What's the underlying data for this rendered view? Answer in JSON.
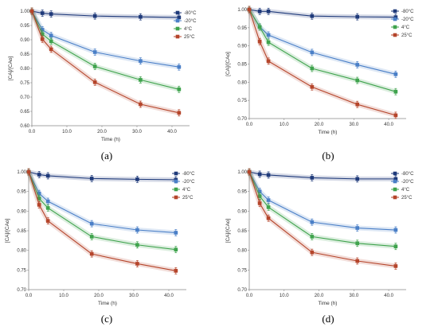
{
  "chart_data": [
    {
      "type": "line",
      "caption": "(a)",
      "xlabel": "Time (h)",
      "ylabel": "[CA]/[CAo]",
      "xlim": [
        0,
        45
      ],
      "ylim": [
        0.6,
        1.0
      ],
      "xticks": [
        "0.0",
        "10.0",
        "20.0",
        "30.0",
        "40.0"
      ],
      "yticks": [
        "0.60",
        "0.65",
        "0.70",
        "0.75",
        "0.80",
        "0.85",
        "0.90",
        "0.95",
        "1.00"
      ],
      "legend_position": "top-right",
      "grid": false,
      "x": [
        0,
        3,
        5.5,
        18,
        31,
        42
      ],
      "series": [
        {
          "name": "-80°C",
          "color": "#1f3a7a",
          "values": [
            1.0,
            0.993,
            0.99,
            0.983,
            0.98,
            0.978
          ]
        },
        {
          "name": "-20°C",
          "color": "#4a7fc7",
          "values": [
            1.0,
            0.935,
            0.915,
            0.857,
            0.826,
            0.805
          ]
        },
        {
          "name": "4°C",
          "color": "#3fa34d",
          "values": [
            1.0,
            0.92,
            0.895,
            0.807,
            0.76,
            0.727
          ]
        },
        {
          "name": "25°C",
          "color": "#b5452b",
          "values": [
            1.0,
            0.902,
            0.867,
            0.752,
            0.675,
            0.645
          ]
        }
      ]
    },
    {
      "type": "line",
      "caption": "(b)",
      "xlabel": "Time (h)",
      "ylabel": "[CA]/[CAo]",
      "xlim": [
        0,
        45
      ],
      "ylim": [
        0.7,
        1.0
      ],
      "xticks": [
        "0.0",
        "10.0",
        "20.0",
        "30.0",
        "40.0"
      ],
      "yticks": [
        "0.70",
        "0.75",
        "0.80",
        "0.85",
        "0.90",
        "0.95",
        "1.00"
      ],
      "legend_position": "top-right",
      "grid": false,
      "x": [
        0,
        3,
        5.5,
        18,
        31,
        42
      ],
      "series": [
        {
          "name": "-80°C",
          "color": "#1f3a7a",
          "values": [
            1.0,
            0.995,
            0.995,
            0.982,
            0.98,
            0.979
          ]
        },
        {
          "name": "-20°C",
          "color": "#4a7fc7",
          "values": [
            1.0,
            0.952,
            0.93,
            0.882,
            0.848,
            0.822
          ]
        },
        {
          "name": "4°C",
          "color": "#3fa34d",
          "values": [
            1.0,
            0.952,
            0.91,
            0.838,
            0.805,
            0.774
          ]
        },
        {
          "name": "25°C",
          "color": "#b5452b",
          "values": [
            1.0,
            0.912,
            0.858,
            0.787,
            0.739,
            0.709
          ]
        }
      ]
    },
    {
      "type": "line",
      "caption": "(c)",
      "xlabel": "Time (h)",
      "ylabel": "[CA]/[CAo]",
      "xlim": [
        0,
        45
      ],
      "ylim": [
        0.7,
        1.0
      ],
      "xticks": [
        "0.0",
        "10.0",
        "20.0",
        "30.0",
        "40.0"
      ],
      "yticks": [
        "0.70",
        "0.75",
        "0.80",
        "0.85",
        "0.90",
        "0.95",
        "1.00"
      ],
      "legend_position": "top-right",
      "grid": false,
      "x": [
        0,
        3,
        5.5,
        18,
        31,
        42
      ],
      "series": [
        {
          "name": "-80°C",
          "color": "#1f3a7a",
          "values": [
            1.0,
            0.993,
            0.99,
            0.983,
            0.981,
            0.98
          ]
        },
        {
          "name": "-20°C",
          "color": "#4a7fc7",
          "values": [
            1.0,
            0.945,
            0.925,
            0.868,
            0.852,
            0.845
          ]
        },
        {
          "name": "4°C",
          "color": "#3fa34d",
          "values": [
            1.0,
            0.932,
            0.908,
            0.835,
            0.814,
            0.802
          ]
        },
        {
          "name": "25°C",
          "color": "#b5452b",
          "values": [
            1.0,
            0.916,
            0.875,
            0.791,
            0.766,
            0.748
          ]
        }
      ]
    },
    {
      "type": "line",
      "caption": "(d)",
      "xlabel": "Time (h)",
      "ylabel": "[CA]/[CAo]",
      "xlim": [
        0,
        45
      ],
      "ylim": [
        0.7,
        1.0
      ],
      "xticks": [
        "0.0",
        "10.0",
        "20.0",
        "30.0",
        "40.0"
      ],
      "yticks": [
        "0.70",
        "0.75",
        "0.80",
        "0.85",
        "0.90",
        "0.95",
        "1.00"
      ],
      "legend_position": "top-right",
      "grid": false,
      "x": [
        0,
        3,
        5.5,
        18,
        31,
        42
      ],
      "series": [
        {
          "name": "-80°C",
          "color": "#1f3a7a",
          "values": [
            1.0,
            0.994,
            0.992,
            0.985,
            0.982,
            0.982
          ]
        },
        {
          "name": "-20°C",
          "color": "#4a7fc7",
          "values": [
            1.0,
            0.95,
            0.928,
            0.872,
            0.857,
            0.852
          ]
        },
        {
          "name": "4°C",
          "color": "#3fa34d",
          "values": [
            1.0,
            0.938,
            0.91,
            0.835,
            0.818,
            0.81
          ]
        },
        {
          "name": "25°C",
          "color": "#b5452b",
          "values": [
            1.0,
            0.92,
            0.882,
            0.795,
            0.773,
            0.76
          ]
        }
      ]
    }
  ]
}
